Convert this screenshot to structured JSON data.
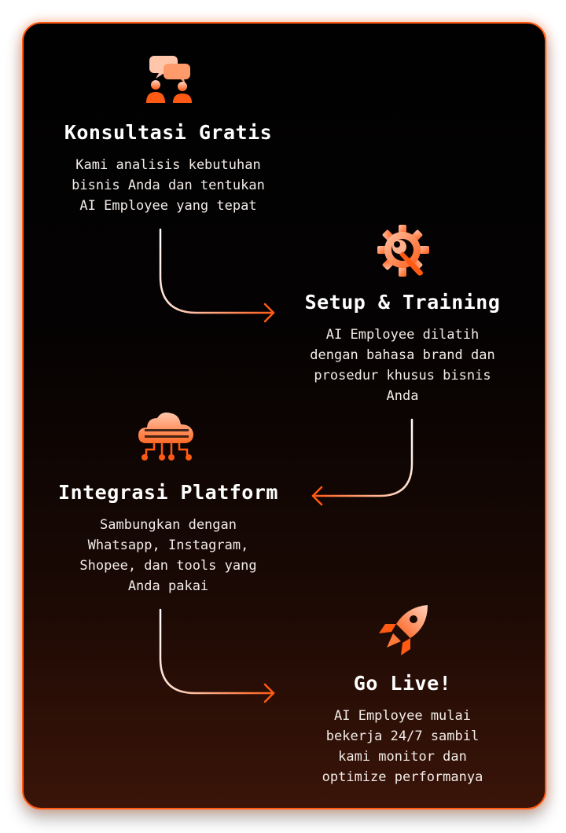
{
  "steps": [
    {
      "title": "Konsultasi Gratis",
      "desc": [
        "Kami analisis kebutuhan",
        "bisnis Anda dan tentukan",
        "AI Employee yang tepat"
      ],
      "icon": "consultation-chat-icon"
    },
    {
      "title": "Setup & Training",
      "desc": [
        "AI Employee dilatih",
        "dengan bahasa brand dan",
        "prosedur khusus bisnis",
        "Anda"
      ],
      "icon": "gear-wrench-icon"
    },
    {
      "title": "Integrasi Platform",
      "desc": [
        "Sambungkan dengan",
        "Whatsapp, Instagram,",
        "Shopee, dan tools yang",
        "Anda pakai"
      ],
      "icon": "cloud-network-icon"
    },
    {
      "title": "Go Live!",
      "desc": [
        "AI Employee mulai",
        "bekerja 24/7 sambil",
        "kami monitor dan",
        "optimize performanya"
      ],
      "icon": "rocket-icon"
    }
  ],
  "colors": {
    "accent": "#ff5a14",
    "accent_light": "#ff9a6a",
    "background_top": "#020101",
    "background_bottom": "#3a1408",
    "text": "#ffffff"
  }
}
